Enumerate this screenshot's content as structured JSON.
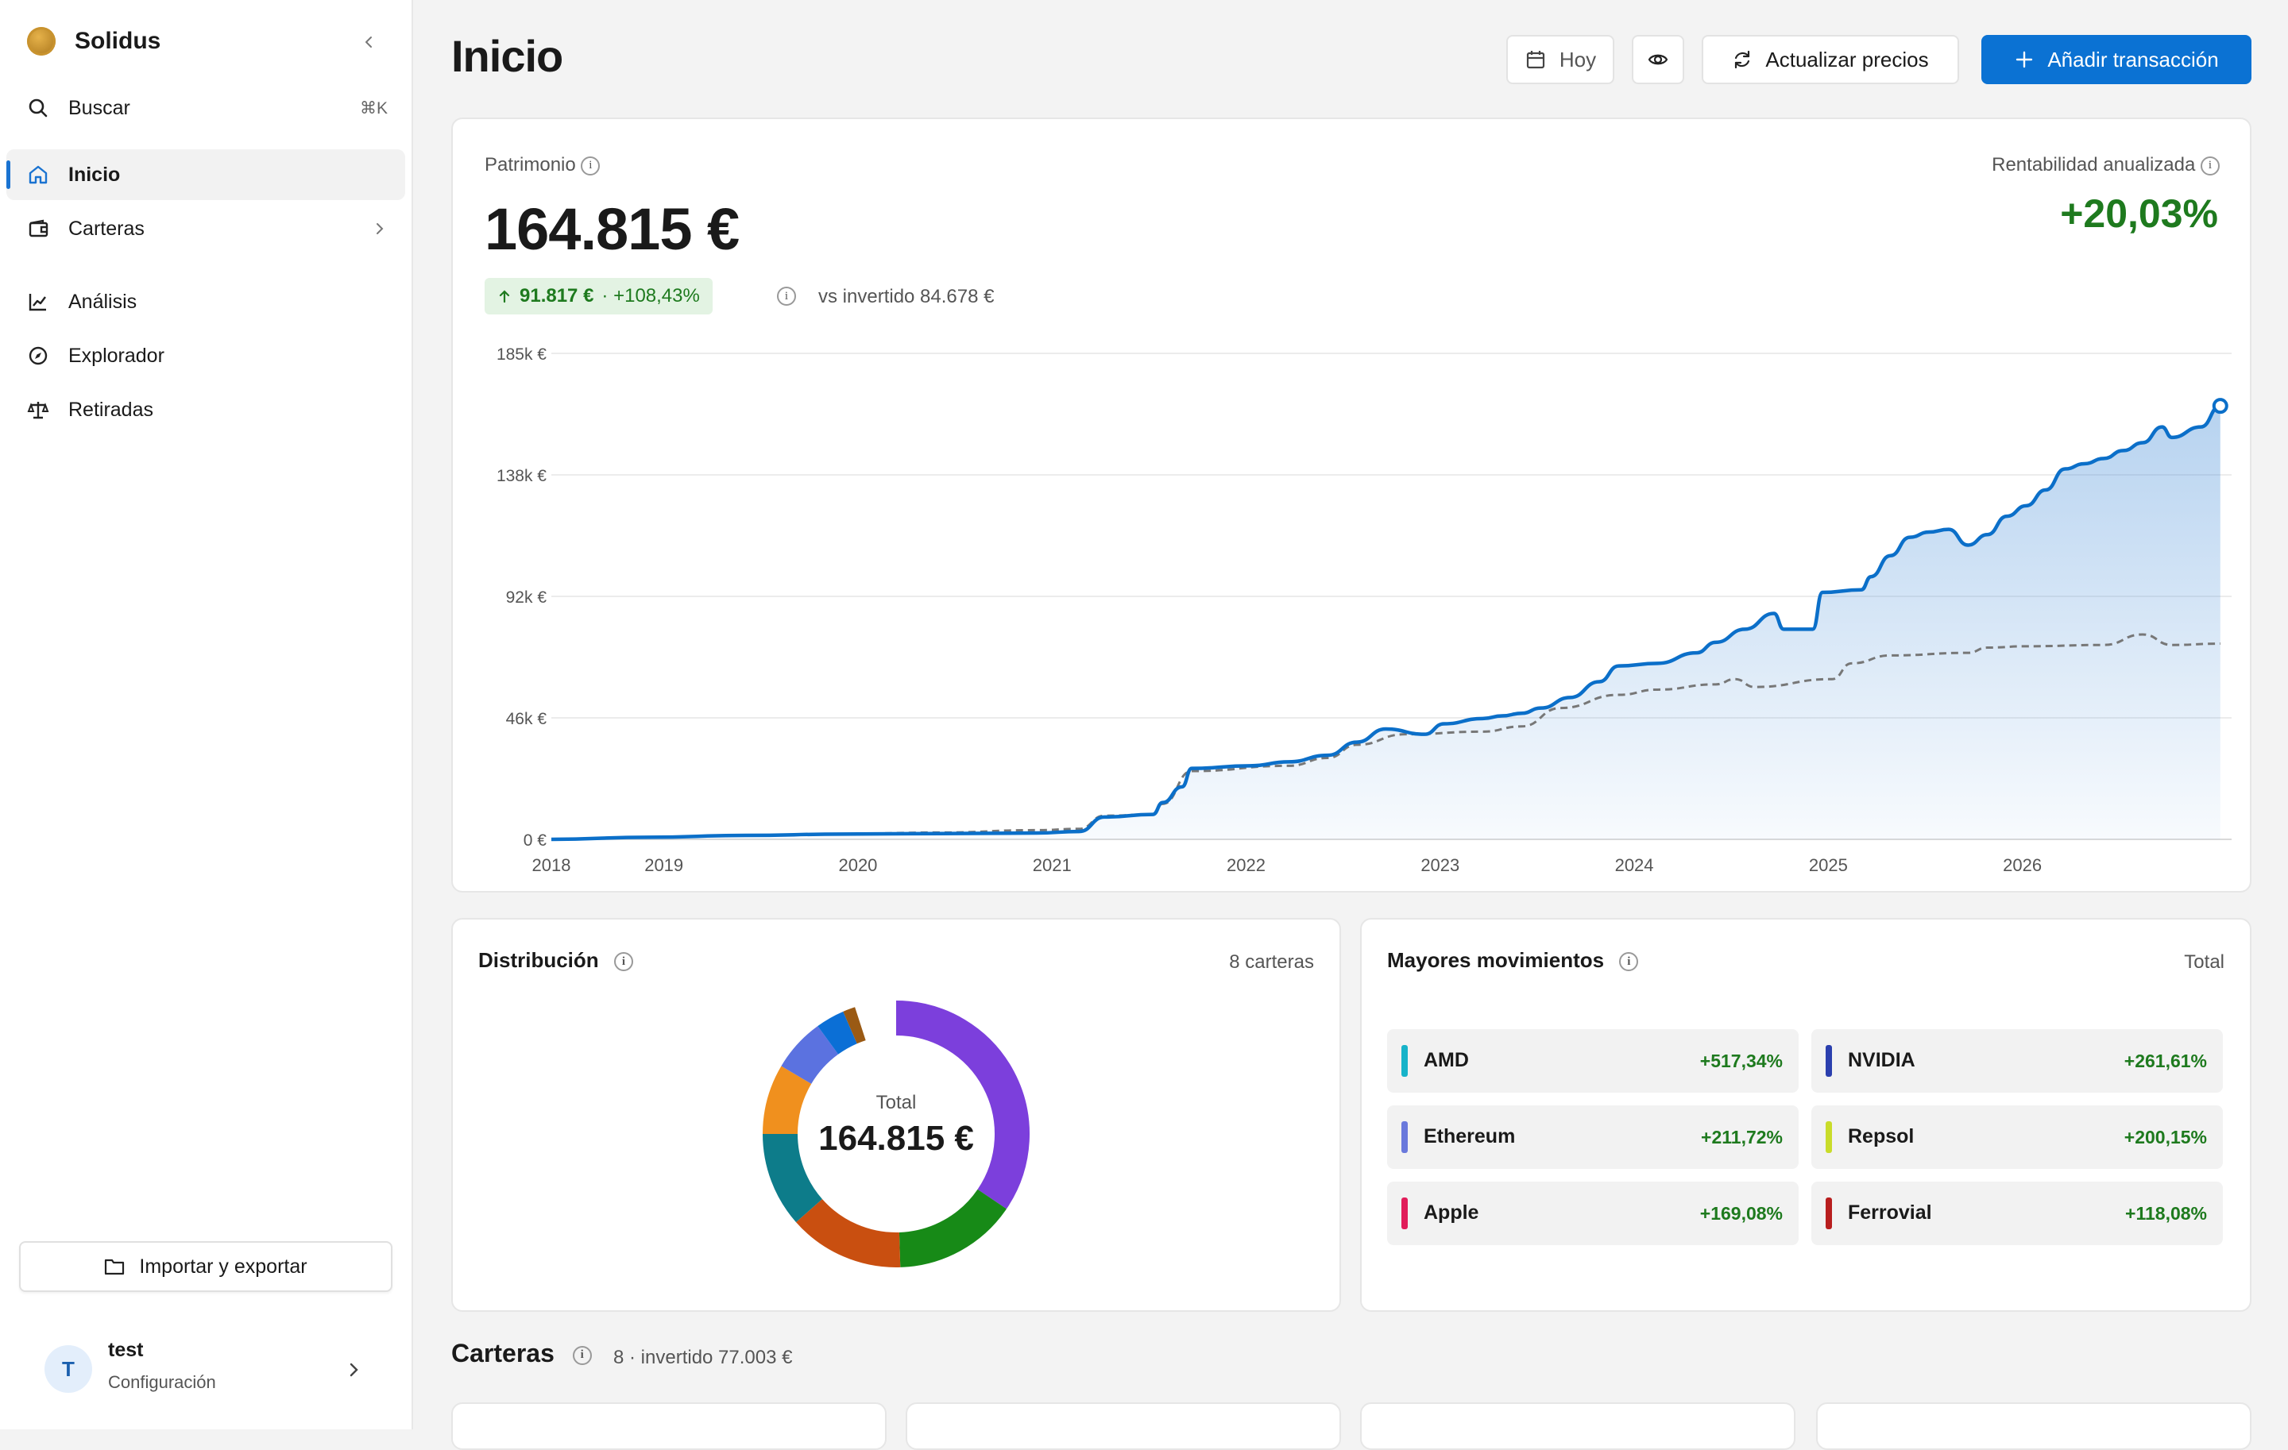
{
  "app": {
    "name": "Solidus"
  },
  "sidebar": {
    "search": {
      "label": "Buscar",
      "shortcut": "⌘K"
    },
    "items": [
      {
        "label": "Inicio",
        "icon": "home-icon",
        "active": true
      },
      {
        "label": "Carteras",
        "icon": "wallet-icon"
      },
      {
        "label": "Análisis",
        "icon": "line-chart-icon"
      },
      {
        "label": "Explorador",
        "icon": "compass-icon"
      },
      {
        "label": "Retiradas",
        "icon": "scale-icon"
      }
    ],
    "import_export": "Importar y exportar",
    "user": {
      "initial": "T",
      "name": "test",
      "subtitle": "Configuración"
    }
  },
  "header": {
    "title": "Inicio",
    "date_button": "Hoy",
    "refresh_button": "Actualizar precios",
    "add_button": "Añadir transacción"
  },
  "wealth": {
    "label": "Patrimonio",
    "value": "164.815 €",
    "gain": "91.817 €",
    "gain_pct": "· +108,43%",
    "vs_invested": "vs invertido 84.678 €",
    "annual_label": "Rentabilidad anualizada",
    "annual_value": "+20,03%"
  },
  "chart_data": {
    "type": "area",
    "y_ticks": [
      "185k €",
      "138k €",
      "92k €",
      "46k €",
      "0 €"
    ],
    "x_ticks": [
      "2018",
      "2019",
      "2020",
      "2021",
      "2022",
      "2023",
      "2024",
      "2025",
      "2026"
    ],
    "ylim": [
      0,
      185000
    ],
    "xlim": [
      2018.0,
      2026.65
    ],
    "grid": true,
    "series": [
      {
        "role": "value",
        "color": "#0b6fc9",
        "points": [
          [
            2018.0,
            0
          ],
          [
            2018.5,
            800
          ],
          [
            2019.0,
            1500
          ],
          [
            2019.5,
            2000
          ],
          [
            2020.0,
            2200
          ],
          [
            2020.5,
            2400
          ],
          [
            2020.72,
            3000
          ],
          [
            2020.85,
            8500
          ],
          [
            2021.1,
            9500
          ],
          [
            2021.15,
            14000
          ],
          [
            2021.25,
            20000
          ],
          [
            2021.3,
            27000
          ],
          [
            2021.6,
            28000
          ],
          [
            2021.8,
            29500
          ],
          [
            2022.0,
            32000
          ],
          [
            2022.15,
            37000
          ],
          [
            2022.3,
            42000
          ],
          [
            2022.5,
            40000
          ],
          [
            2022.6,
            44000
          ],
          [
            2022.8,
            46000
          ],
          [
            2022.9,
            47000
          ],
          [
            2023.0,
            48000
          ],
          [
            2023.1,
            50000
          ],
          [
            2023.25,
            54000
          ],
          [
            2023.4,
            60000
          ],
          [
            2023.5,
            66000
          ],
          [
            2023.7,
            67000
          ],
          [
            2023.9,
            71000
          ],
          [
            2024.0,
            75000
          ],
          [
            2024.15,
            80000
          ],
          [
            2024.3,
            86000
          ],
          [
            2024.35,
            80000
          ],
          [
            2024.5,
            80000
          ],
          [
            2024.55,
            94000
          ],
          [
            2024.75,
            95000
          ],
          [
            2024.8,
            100000
          ],
          [
            2024.9,
            108000
          ],
          [
            2025.0,
            115000
          ],
          [
            2025.1,
            117000
          ],
          [
            2025.2,
            118000
          ],
          [
            2025.3,
            112000
          ],
          [
            2025.4,
            116000
          ],
          [
            2025.5,
            123000
          ],
          [
            2025.6,
            127000
          ],
          [
            2025.7,
            133000
          ],
          [
            2025.8,
            141000
          ],
          [
            2025.9,
            143000
          ],
          [
            2026.0,
            145000
          ],
          [
            2026.1,
            148000
          ],
          [
            2026.2,
            151000
          ],
          [
            2026.3,
            157000
          ],
          [
            2026.35,
            153000
          ],
          [
            2026.5,
            157000
          ],
          [
            2026.6,
            165000
          ]
        ]
      },
      {
        "role": "invested",
        "color": "#777777",
        "dashed": true,
        "points": [
          [
            2018.0,
            0
          ],
          [
            2018.5,
            800
          ],
          [
            2019.0,
            1500
          ],
          [
            2019.5,
            2100
          ],
          [
            2020.0,
            2600
          ],
          [
            2020.5,
            3500
          ],
          [
            2020.72,
            4000
          ],
          [
            2020.85,
            9000
          ],
          [
            2021.1,
            9500
          ],
          [
            2021.15,
            13500
          ],
          [
            2021.3,
            26000
          ],
          [
            2021.8,
            28000
          ],
          [
            2022.0,
            31000
          ],
          [
            2022.15,
            36000
          ],
          [
            2022.4,
            40000
          ],
          [
            2022.8,
            41000
          ],
          [
            2023.0,
            43000
          ],
          [
            2023.2,
            50000
          ],
          [
            2023.5,
            55000
          ],
          [
            2023.7,
            57000
          ],
          [
            2024.0,
            59000
          ],
          [
            2024.1,
            61000
          ],
          [
            2024.2,
            58000
          ],
          [
            2024.6,
            61000
          ],
          [
            2024.7,
            67000
          ],
          [
            2024.9,
            70000
          ],
          [
            2025.3,
            71000
          ],
          [
            2025.4,
            73000
          ],
          [
            2025.6,
            73500
          ],
          [
            2026.0,
            74000
          ],
          [
            2026.2,
            78000
          ],
          [
            2026.35,
            74000
          ],
          [
            2026.6,
            74500
          ]
        ]
      }
    ]
  },
  "distribution": {
    "title": "Distribución",
    "count": "8 carteras",
    "total_label": "Total",
    "total_value": "164.815 €",
    "slices": [
      {
        "pct": 34.5,
        "color": "#7c3fdc"
      },
      {
        "pct": 15.0,
        "color": "#178a17"
      },
      {
        "pct": 14.0,
        "color": "#c94f10"
      },
      {
        "pct": 11.5,
        "color": "#0d7c8a"
      },
      {
        "pct": 8.5,
        "color": "#f0901e"
      },
      {
        "pct": 6.5,
        "color": "#5b72e0"
      },
      {
        "pct": 3.5,
        "color": "#0b6fd6"
      },
      {
        "pct": 1.5,
        "color": "#9a5a14"
      }
    ]
  },
  "movements": {
    "title": "Mayores movimientos",
    "filter": "Total",
    "items": [
      {
        "name": "AMD",
        "pct": "+517,34%",
        "color": "#17b3c9"
      },
      {
        "name": "NVIDIA",
        "pct": "+261,61%",
        "color": "#2b3fae"
      },
      {
        "name": "Ethereum",
        "pct": "+211,72%",
        "color": "#6a79dc"
      },
      {
        "name": "Repsol",
        "pct": "+200,15%",
        "color": "#c9dc2a"
      },
      {
        "name": "Apple",
        "pct": "+169,08%",
        "color": "#e11d5a"
      },
      {
        "name": "Ferrovial",
        "pct": "+118,08%",
        "color": "#b81e1e"
      }
    ]
  },
  "portfolios": {
    "title": "Carteras",
    "summary": "8 · invertido 77.003 €"
  }
}
